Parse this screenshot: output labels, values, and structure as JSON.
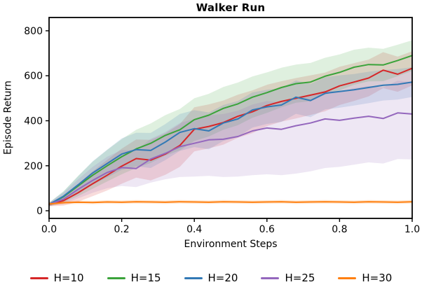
{
  "chart_data": {
    "type": "line",
    "title": "Walker Run",
    "xlabel": "Environment Steps",
    "ylabel": "Episode Return",
    "xlim": [
      0.0,
      1.0
    ],
    "ylim": [
      -34,
      859
    ],
    "grid": false,
    "legend_position": "below",
    "x_ticks": [
      0.0,
      0.2,
      0.4,
      0.6,
      0.8,
      1.0
    ],
    "x_tick_labels": [
      "0.0",
      "0.2",
      "0.4",
      "0.6",
      "0.8",
      "1.0"
    ],
    "y_ticks": [
      0,
      200,
      400,
      600,
      800
    ],
    "y_tick_labels": [
      "0",
      "200",
      "400",
      "600",
      "800"
    ],
    "x": [
      0,
      0.04,
      0.08,
      0.12,
      0.16,
      0.2,
      0.24,
      0.28,
      0.32,
      0.36,
      0.4,
      0.44,
      0.48,
      0.52,
      0.56,
      0.6,
      0.64,
      0.68,
      0.72,
      0.76,
      0.8,
      0.84,
      0.88,
      0.92,
      0.96,
      1.0
    ],
    "series": [
      {
        "name": "H=10",
        "color": "#d62728",
        "values": [
          28,
          45,
          80,
          120,
          158,
          198,
          232,
          225,
          252,
          290,
          362,
          375,
          392,
          420,
          440,
          468,
          486,
          500,
          514,
          528,
          555,
          572,
          590,
          625,
          607,
          633
        ],
        "band_lo": [
          20,
          23,
          40,
          65,
          90,
          120,
          147,
          135,
          160,
          195,
          264,
          277,
          294,
          324,
          345,
          376,
          396,
          410,
          426,
          442,
          470,
          488,
          508,
          545,
          529,
          557
        ],
        "band_hi": [
          36,
          67,
          120,
          175,
          226,
          276,
          317,
          315,
          344,
          385,
          460,
          473,
          490,
          516,
          535,
          560,
          576,
          590,
          602,
          614,
          640,
          656,
          672,
          705,
          685,
          709
        ]
      },
      {
        "name": "H=15",
        "color": "#3aa33a",
        "values": [
          28,
          62,
          110,
          158,
          200,
          240,
          275,
          300,
          335,
          360,
          405,
          425,
          455,
          475,
          505,
          525,
          548,
          565,
          572,
          598,
          615,
          638,
          650,
          648,
          668,
          690
        ],
        "band_lo": [
          20,
          37,
          65,
          98,
          130,
          162,
          190,
          212,
          245,
          268,
          310,
          330,
          360,
          380,
          413,
          435,
          460,
          480,
          487,
          516,
          535,
          560,
          575,
          576,
          598,
          622
        ],
        "band_hi": [
          36,
          87,
          155,
          218,
          270,
          318,
          360,
          388,
          425,
          452,
          500,
          520,
          550,
          570,
          597,
          615,
          636,
          650,
          657,
          680,
          695,
          716,
          725,
          720,
          738,
          758
        ]
      },
      {
        "name": "H=20",
        "color": "#3279b5",
        "values": [
          28,
          65,
          115,
          168,
          210,
          252,
          272,
          268,
          305,
          348,
          365,
          355,
          390,
          408,
          448,
          462,
          470,
          505,
          490,
          522,
          530,
          538,
          548,
          558,
          562,
          572
        ],
        "band_lo": [
          20,
          45,
          77,
          116,
          148,
          182,
          197,
          190,
          225,
          266,
          283,
          273,
          310,
          328,
          370,
          386,
          395,
          431,
          416,
          450,
          458,
          468,
          478,
          490,
          494,
          506
        ],
        "band_hi": [
          36,
          85,
          153,
          220,
          272,
          322,
          347,
          346,
          385,
          430,
          447,
          437,
          470,
          488,
          526,
          538,
          545,
          579,
          564,
          594,
          602,
          608,
          618,
          626,
          630,
          638
        ]
      },
      {
        "name": "H=25",
        "color": "#9467bd",
        "values": [
          28,
          52,
          95,
          135,
          170,
          192,
          188,
          230,
          255,
          285,
          300,
          315,
          318,
          330,
          355,
          368,
          362,
          378,
          390,
          408,
          402,
          412,
          420,
          410,
          435,
          430
        ],
        "band_lo": [
          20,
          30,
          55,
          80,
          100,
          110,
          105,
          125,
          140,
          150,
          152,
          155,
          150,
          152,
          158,
          162,
          158,
          165,
          175,
          190,
          195,
          205,
          215,
          210,
          230,
          228
        ],
        "band_hi": [
          36,
          80,
          140,
          195,
          240,
          270,
          268,
          320,
          350,
          390,
          408,
          425,
          430,
          445,
          472,
          488,
          482,
          500,
          515,
          535,
          530,
          545,
          555,
          548,
          578,
          572
        ]
      },
      {
        "name": "H=30",
        "color": "#ff7f0e",
        "values": [
          30,
          36,
          38,
          37,
          39,
          38,
          40,
          39,
          38,
          40,
          39,
          38,
          40,
          39,
          38,
          39,
          40,
          38,
          39,
          40,
          39,
          38,
          40,
          39,
          38,
          40
        ],
        "band_lo": [
          22,
          28,
          30,
          29,
          31,
          30,
          32,
          31,
          30,
          32,
          31,
          30,
          32,
          31,
          30,
          31,
          32,
          30,
          31,
          32,
          31,
          30,
          32,
          31,
          30,
          32
        ],
        "band_hi": [
          38,
          44,
          46,
          45,
          47,
          46,
          48,
          47,
          46,
          48,
          47,
          46,
          48,
          47,
          46,
          47,
          48,
          46,
          47,
          48,
          47,
          46,
          48,
          47,
          46,
          48
        ]
      }
    ]
  }
}
